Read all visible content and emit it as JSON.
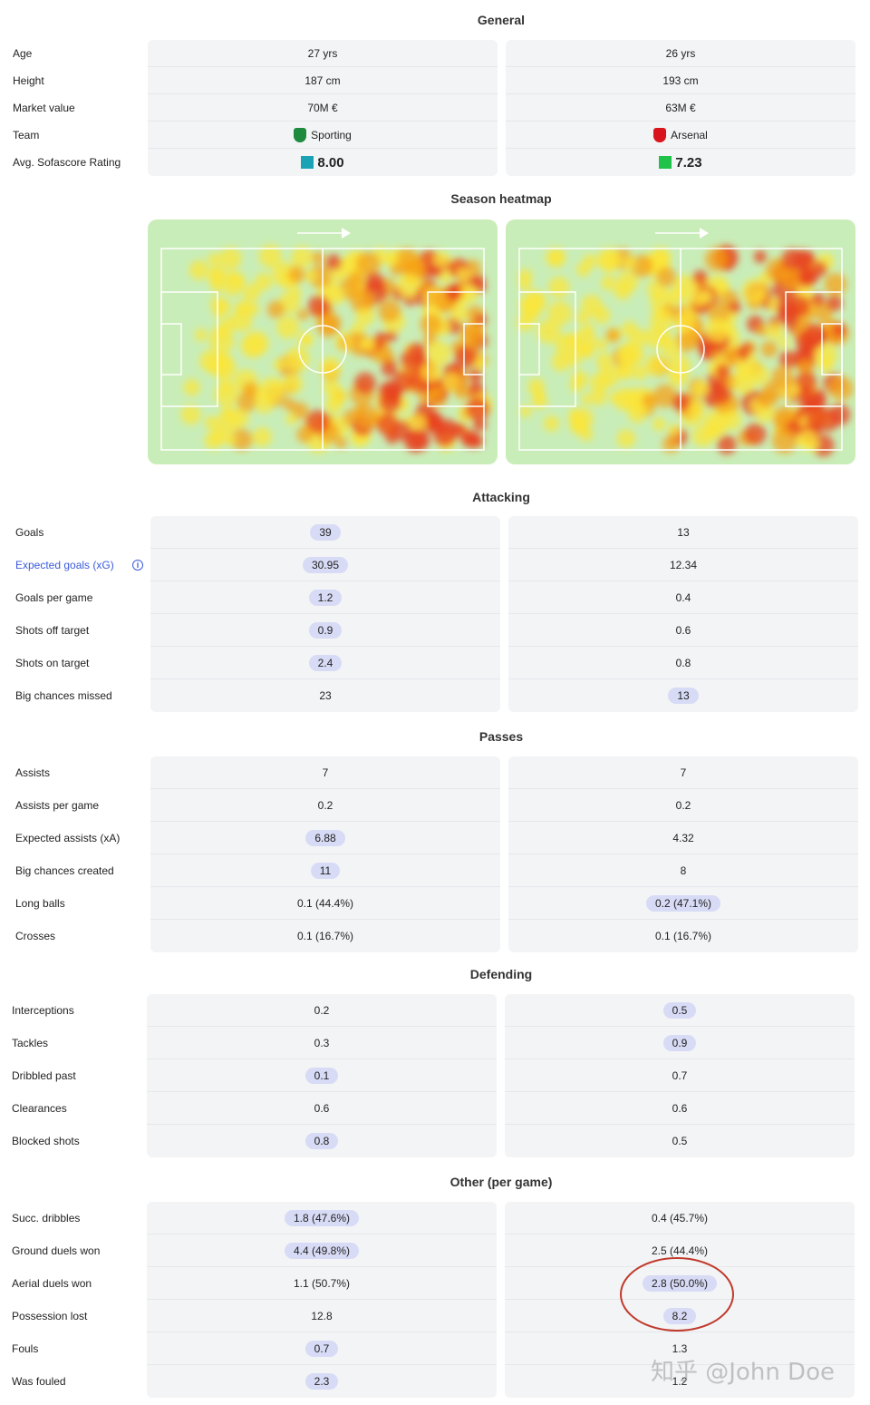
{
  "general": {
    "title": "General",
    "rows": [
      {
        "label": "Age",
        "p1": "27 yrs",
        "p2": "26 yrs"
      },
      {
        "label": "Height",
        "p1": "187 cm",
        "p2": "193 cm"
      },
      {
        "label": "Market value",
        "p1": "70M €",
        "p2": "63M €"
      },
      {
        "label": "Team",
        "p1": "Sporting",
        "p2": "Arsenal"
      },
      {
        "label": "Avg. Sofascore Rating",
        "p1": "8.00",
        "p2": "7.23"
      }
    ],
    "p1_rating_color": "#1aa3b5",
    "p2_rating_color": "#1fc34a",
    "p1_crest_color": "#1e8a3e",
    "p2_crest_color": "#d8141c"
  },
  "heatmap": {
    "title": "Season heatmap"
  },
  "attacking": {
    "title": "Attacking",
    "rows": [
      {
        "label": "Goals",
        "p1": "39",
        "p2": "13",
        "hl": 1
      },
      {
        "label": "Expected goals (xG)",
        "p1": "30.95",
        "p2": "12.34",
        "hl": 1
      },
      {
        "label": "Goals per game",
        "p1": "1.2",
        "p2": "0.4",
        "hl": 1
      },
      {
        "label": "Shots off target",
        "p1": "0.9",
        "p2": "0.6",
        "hl": 1
      },
      {
        "label": "Shots on target",
        "p1": "2.4",
        "p2": "0.8",
        "hl": 1
      },
      {
        "label": "Big chances missed",
        "p1": "23",
        "p2": "13",
        "hl": 2
      }
    ]
  },
  "passes": {
    "title": "Passes",
    "rows": [
      {
        "label": "Assists",
        "p1": "7",
        "p2": "7",
        "hl": 0
      },
      {
        "label": "Assists per game",
        "p1": "0.2",
        "p2": "0.2",
        "hl": 0
      },
      {
        "label": "Expected assists (xA)",
        "p1": "6.88",
        "p2": "4.32",
        "hl": 1
      },
      {
        "label": "Big chances created",
        "p1": "11",
        "p2": "8",
        "hl": 1
      },
      {
        "label": "Long balls",
        "p1": "0.1 (44.4%)",
        "p2": "0.2 (47.1%)",
        "hl": 2
      },
      {
        "label": "Crosses",
        "p1": "0.1 (16.7%)",
        "p2": "0.1 (16.7%)",
        "hl": 0
      }
    ]
  },
  "defending": {
    "title": "Defending",
    "rows": [
      {
        "label": "Interceptions",
        "p1": "0.2",
        "p2": "0.5",
        "hl": 2
      },
      {
        "label": "Tackles",
        "p1": "0.3",
        "p2": "0.9",
        "hl": 2
      },
      {
        "label": "Dribbled past",
        "p1": "0.1",
        "p2": "0.7",
        "hl": 1
      },
      {
        "label": "Clearances",
        "p1": "0.6",
        "p2": "0.6",
        "hl": 0
      },
      {
        "label": "Blocked shots",
        "p1": "0.8",
        "p2": "0.5",
        "hl": 1
      }
    ]
  },
  "other": {
    "title": "Other (per game)",
    "rows": [
      {
        "label": "Succ. dribbles",
        "p1": "1.8 (47.6%)",
        "p2": "0.4 (45.7%)",
        "hl": 1
      },
      {
        "label": "Ground duels won",
        "p1": "4.4 (49.8%)",
        "p2": "2.5 (44.4%)",
        "hl": 1
      },
      {
        "label": "Aerial duels won",
        "p1": "1.1 (50.7%)",
        "p2": "2.8 (50.0%)",
        "hl": 2
      },
      {
        "label": "Possession lost",
        "p1": "12.8",
        "p2": "8.2",
        "hl": 2
      },
      {
        "label": "Fouls",
        "p1": "0.7",
        "p2": "1.3",
        "hl": 1
      },
      {
        "label": "Was fouled",
        "p1": "2.3",
        "p2": "1.2",
        "hl": 1
      }
    ]
  },
  "watermark": "知乎 @John Doe"
}
